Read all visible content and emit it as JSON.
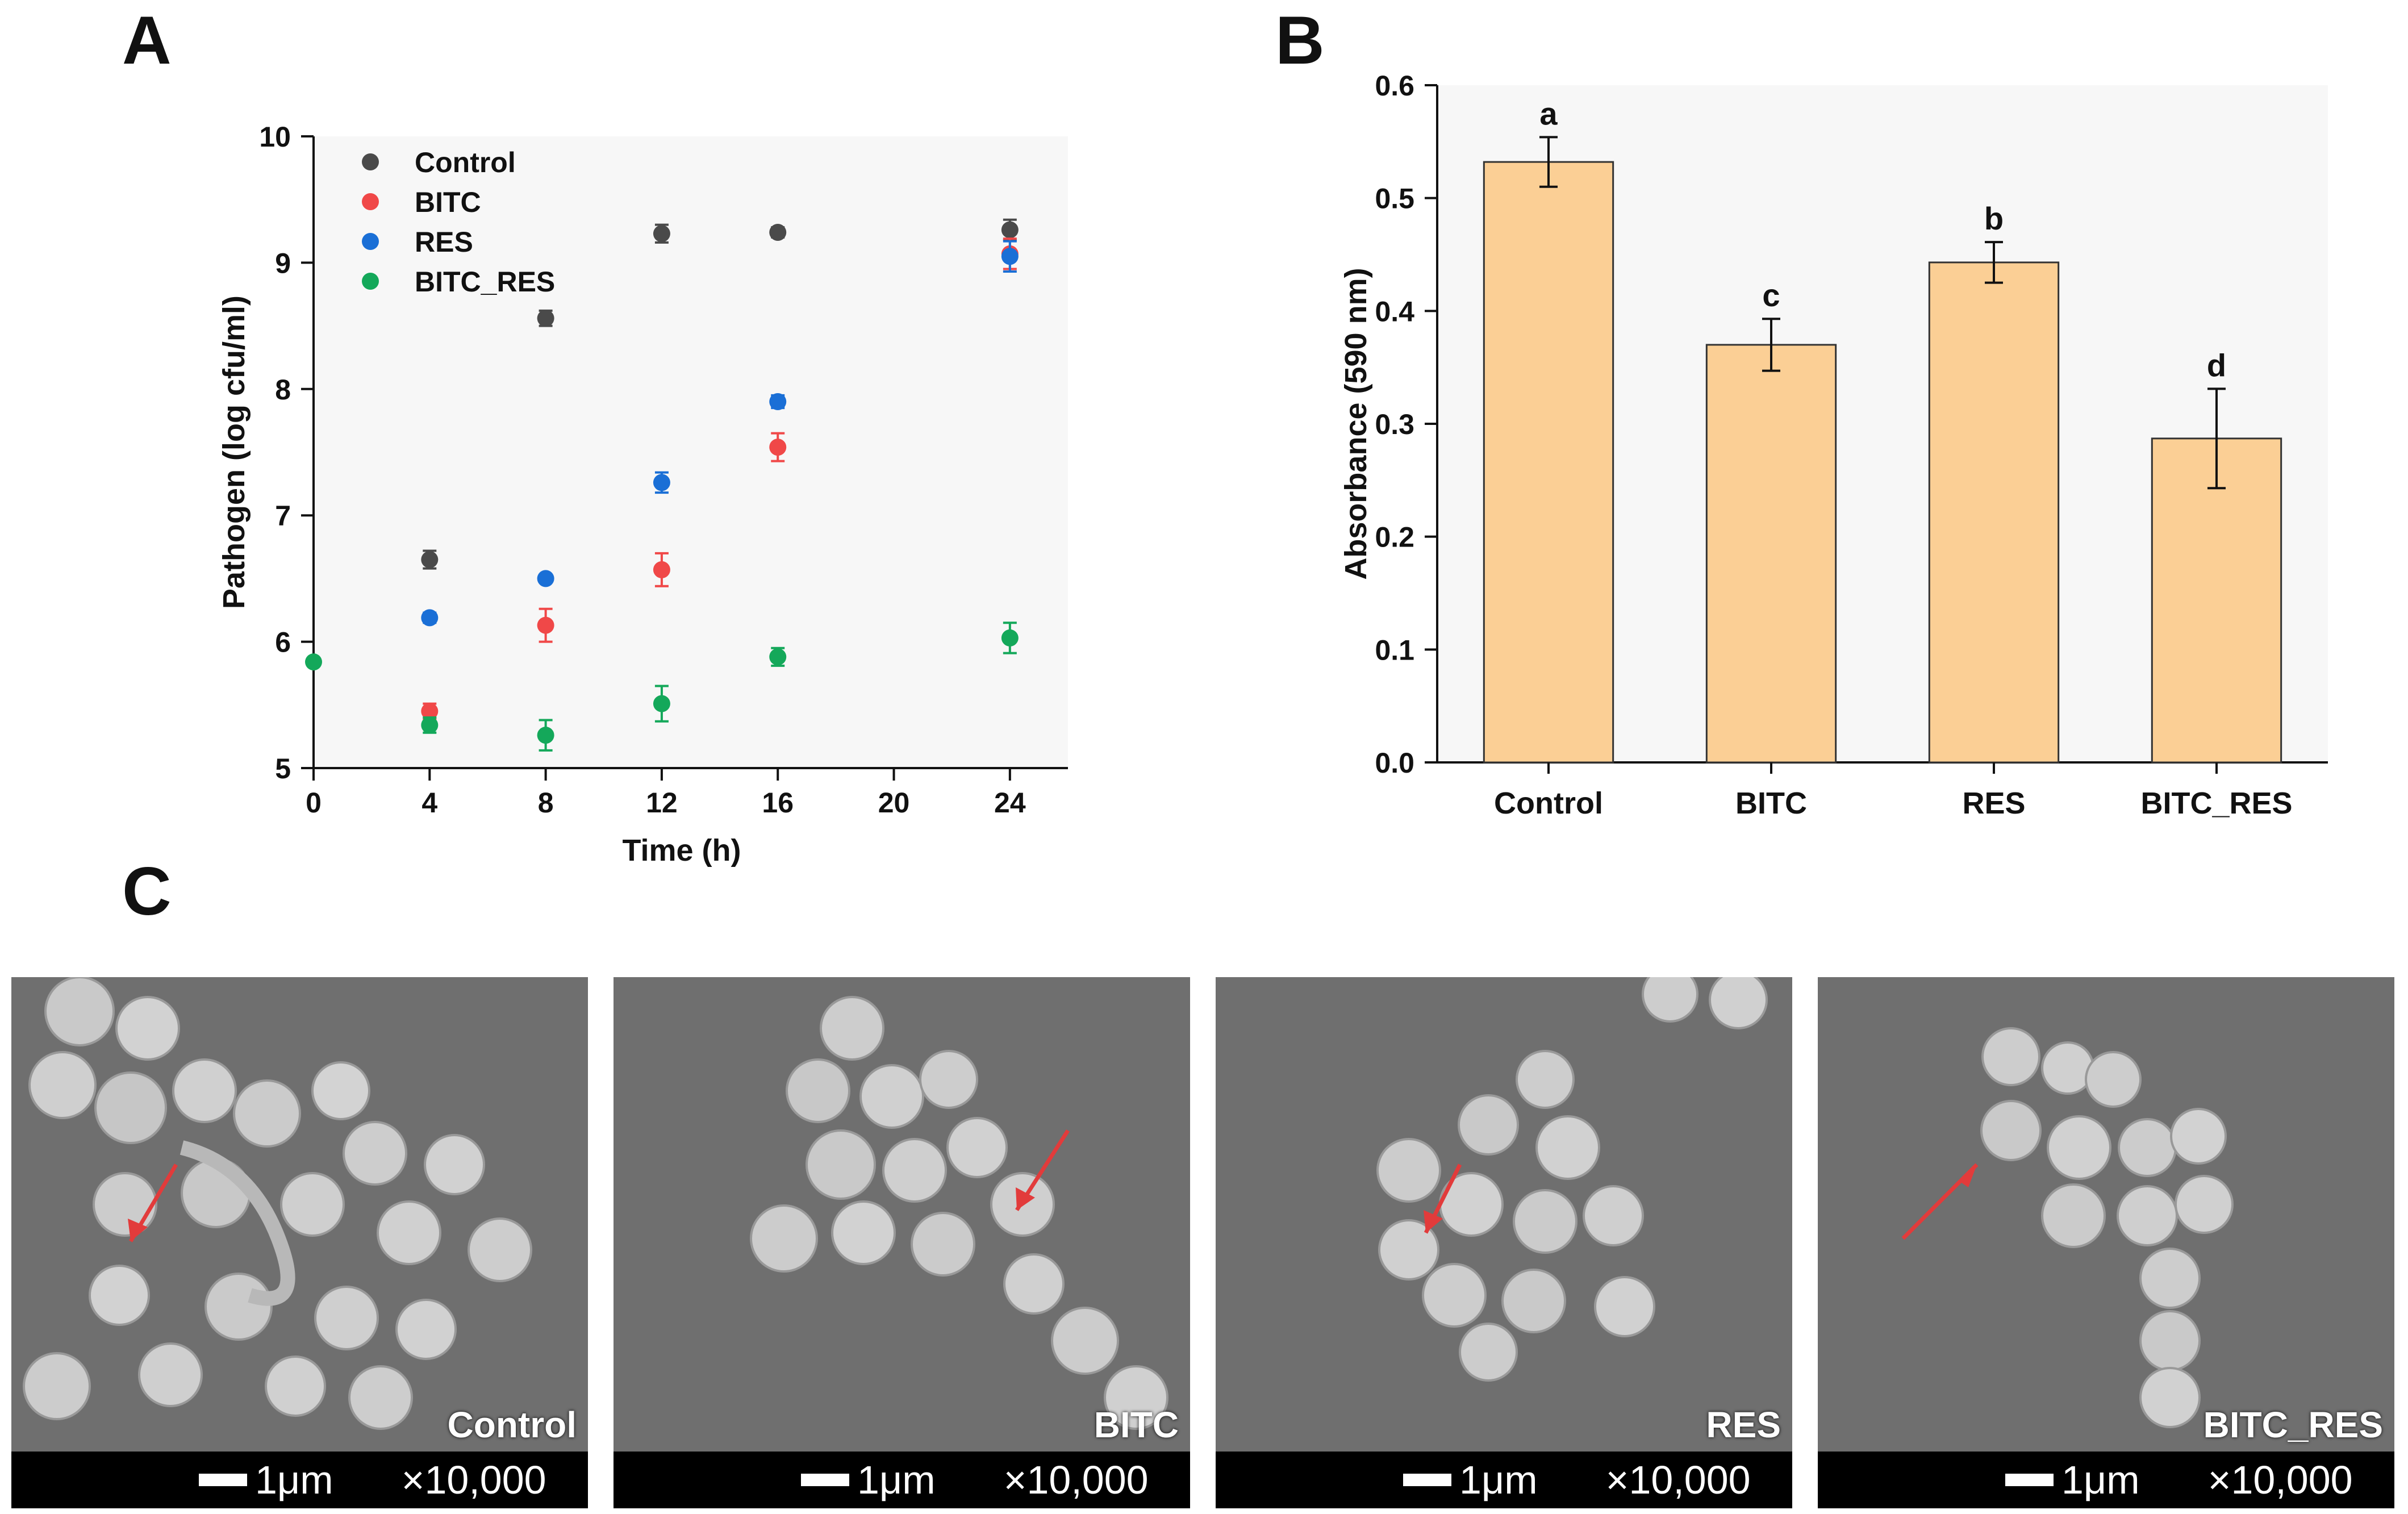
{
  "panels": {
    "a": "A",
    "b": "B",
    "c": "C"
  },
  "colors": {
    "Control": "#4a4a4a",
    "BITC": "#f04848",
    "RES": "#1a6fd6",
    "BITC_RES": "#14a85a",
    "bar": "#fbcf95",
    "arrow": "#e23b3b"
  },
  "chart_data": [
    {
      "type": "scatter",
      "id": "A",
      "xlabel": "Time (h)",
      "ylabel": "Pathogen (log cfu/ml)",
      "xlim": [
        0,
        26
      ],
      "ylim": [
        5,
        10
      ],
      "xticks": [
        0,
        4,
        8,
        12,
        16,
        20,
        24
      ],
      "yticks": [
        5,
        6,
        7,
        8,
        9,
        10
      ],
      "legend_position": "top-left",
      "series": [
        {
          "name": "Control",
          "x": [
            4,
            8,
            12,
            16,
            24
          ],
          "y": [
            6.65,
            8.56,
            9.23,
            9.24,
            9.26
          ],
          "err": [
            0.07,
            0.06,
            0.07,
            0.04,
            0.08
          ]
        },
        {
          "name": "BITC",
          "x": [
            4,
            8,
            12,
            16,
            24
          ],
          "y": [
            5.45,
            6.13,
            6.57,
            7.54,
            9.07
          ],
          "err": [
            0.06,
            0.13,
            0.13,
            0.11,
            0.12
          ]
        },
        {
          "name": "RES",
          "x": [
            4,
            8,
            12,
            16,
            24
          ],
          "y": [
            6.19,
            6.5,
            7.26,
            7.9,
            9.05
          ],
          "err": [
            0.04,
            0.03,
            0.08,
            0.05,
            0.12
          ]
        },
        {
          "name": "BITC_RES",
          "x": [
            0,
            4,
            8,
            12,
            16,
            24
          ],
          "y": [
            5.84,
            5.34,
            5.26,
            5.51,
            5.88,
            6.03
          ],
          "err": [
            0.0,
            0.06,
            0.12,
            0.14,
            0.07,
            0.12
          ]
        }
      ]
    },
    {
      "type": "bar",
      "id": "B",
      "categories": [
        "Control",
        "BITC",
        "RES",
        "BITC_RES"
      ],
      "values": [
        0.532,
        0.37,
        0.443,
        0.287
      ],
      "err": [
        0.022,
        0.023,
        0.018,
        0.044
      ],
      "letters": [
        "a",
        "c",
        "b",
        "d"
      ],
      "ylabel": "Absorbance (590 nm)",
      "ylim": [
        0,
        0.6
      ],
      "yticks": [
        "0.0",
        "0.1",
        "0.2",
        "0.3",
        "0.4",
        "0.5",
        "0.6"
      ]
    }
  ],
  "sem_images": [
    {
      "label": "Control",
      "scale": "1μm",
      "mag": "×10,000"
    },
    {
      "label": "BITC",
      "scale": "1μm",
      "mag": "×10,000"
    },
    {
      "label": "RES",
      "scale": "1μm",
      "mag": "×10,000"
    },
    {
      "label": "BITC_RES",
      "scale": "1μm",
      "mag": "×10,000"
    }
  ]
}
